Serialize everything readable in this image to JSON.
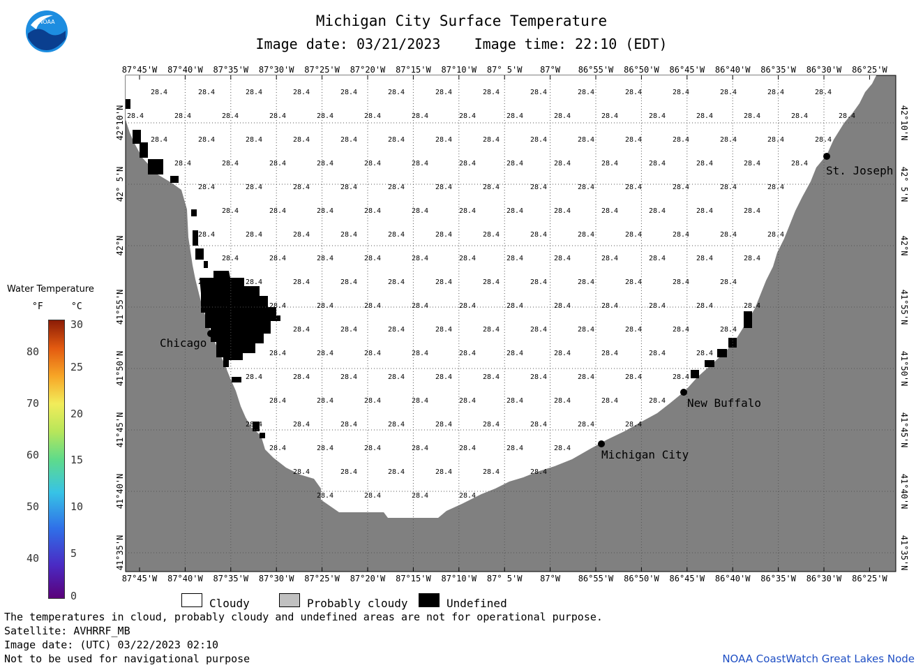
{
  "header": {
    "title": "Michigan City Surface Temperature",
    "image_date": "Image date: 03/21/2023",
    "image_time": "Image time: 22:10 (EDT)"
  },
  "logo": {
    "text": "NOAA"
  },
  "map": {
    "lon_labels": [
      "87°45'W",
      "87°40'W",
      "87°35'W",
      "87°30'W",
      "87°25'W",
      "87°20'W",
      "87°15'W",
      "87°10'W",
      "87° 5'W",
      "87°W",
      "86°55'W",
      "86°50'W",
      "86°45'W",
      "86°40'W",
      "86°35'W",
      "86°30'W",
      "86°25'W"
    ],
    "lat_labels": [
      "42°10'N",
      "42° 5'N",
      "42°N",
      "41°55'N",
      "41°50'N",
      "41°45'N",
      "41°40'N",
      "41°35'N"
    ],
    "cell_value": "28.4",
    "cities": {
      "chicago": "Chicago",
      "st_joseph": "St. Joseph",
      "new_buffalo": "New Buffalo",
      "michigan_city": "Michigan City"
    },
    "colors": {
      "land": "#808080",
      "water": "#ffffff",
      "undefined": "#000000",
      "grid": "#555555"
    }
  },
  "legend": {
    "title": "Water Temperature",
    "unit_f": "°F",
    "unit_c": "°C",
    "f_ticks": [
      "80",
      "70",
      "60",
      "50",
      "40"
    ],
    "c_ticks": [
      "30",
      "25",
      "20",
      "15",
      "10",
      "5",
      "0"
    ]
  },
  "key": {
    "cloudy": "Cloudy",
    "probably_cloudy": "Probably cloudy",
    "undefined": "Undefined"
  },
  "notes": {
    "line1": "The temperatures in cloud, probably cloudy and undefined areas are not for operational purpose.",
    "line2": "Satellite: AVHRRF_MB",
    "line3": "Image date: (UTC) 03/22/2023  02:10",
    "line4": "Not to be used for navigational purpose"
  },
  "credit": "NOAA CoastWatch Great Lakes Node"
}
